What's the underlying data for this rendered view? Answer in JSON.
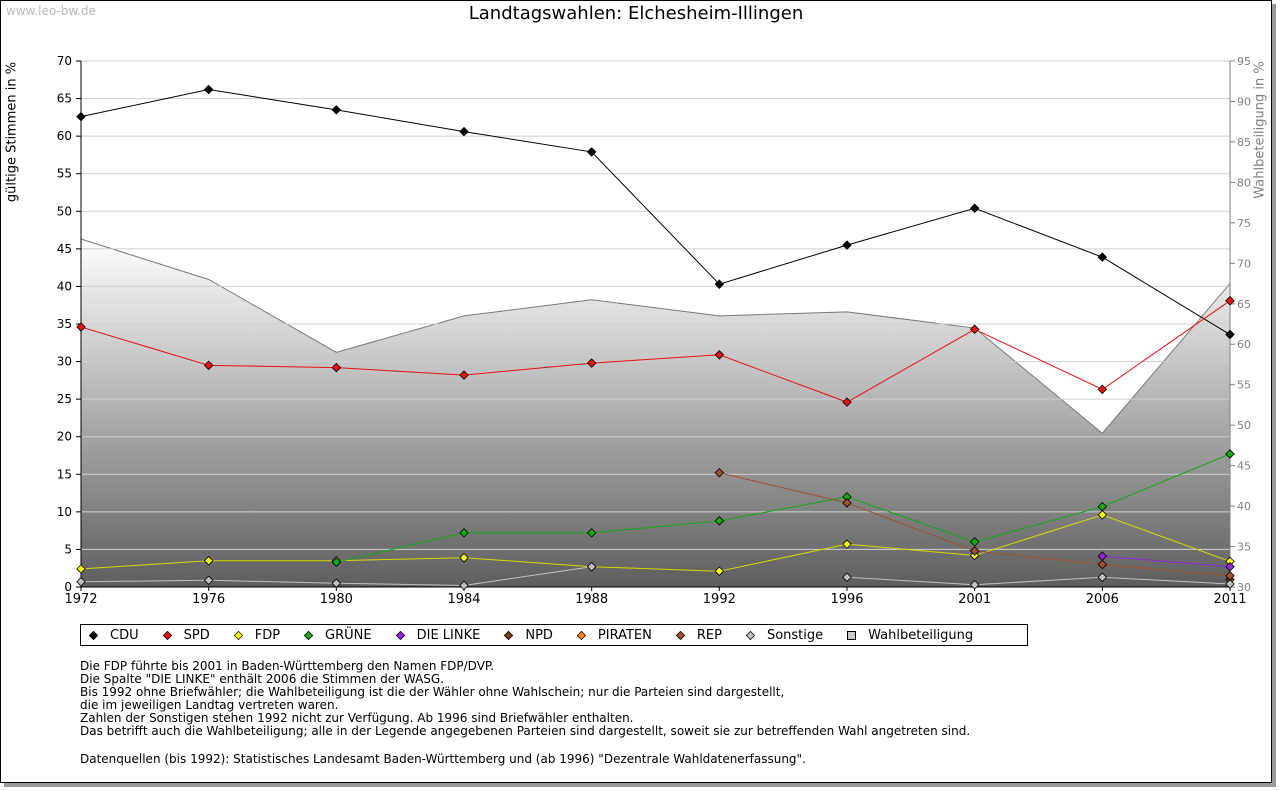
{
  "watermark": "www.leo-bw.de",
  "chart_data": {
    "type": "line",
    "title": "Landtagswahlen: Elchesheim-Illingen",
    "ylabel": "gültige Stimmen in %",
    "ylabel_right": "Wahlbeteiligung in %",
    "x": [
      "1972",
      "1976",
      "1980",
      "1984",
      "1988",
      "1992",
      "1996",
      "2001",
      "2006",
      "2011"
    ],
    "ylim": [
      0,
      70
    ],
    "yticks": [
      0,
      5,
      10,
      15,
      20,
      25,
      30,
      35,
      40,
      45,
      50,
      55,
      60,
      65,
      70
    ],
    "ylim_right": [
      30,
      95
    ],
    "yticks_right": [
      30,
      35,
      40,
      45,
      50,
      55,
      60,
      65,
      70,
      75,
      80,
      85,
      90,
      95
    ],
    "grid": true,
    "legend_position": "bottom",
    "series": [
      {
        "name": "CDU",
        "color": "#000000",
        "values": [
          62.6,
          66.2,
          63.5,
          60.6,
          57.9,
          40.3,
          45.5,
          50.4,
          43.9,
          33.6
        ]
      },
      {
        "name": "SPD",
        "color": "#ee1111",
        "values": [
          34.6,
          29.5,
          29.2,
          28.2,
          29.8,
          30.9,
          24.6,
          34.3,
          26.3,
          38.1
        ]
      },
      {
        "name": "FDP",
        "color": "#ffff00",
        "values": [
          2.4,
          3.5,
          3.5,
          3.9,
          2.7,
          2.1,
          5.7,
          4.2,
          9.6,
          3.4
        ]
      },
      {
        "name": "GRÜNE",
        "color": "#11aa11",
        "values": [
          null,
          null,
          3.3,
          7.2,
          7.2,
          8.8,
          12.0,
          6.0,
          10.7,
          17.7
        ]
      },
      {
        "name": "DIE LINKE",
        "color": "#9922dd",
        "values": [
          null,
          null,
          null,
          null,
          null,
          null,
          null,
          null,
          4.1,
          2.7
        ]
      },
      {
        "name": "NPD",
        "color": "#7a3b12",
        "values": [
          null,
          null,
          null,
          null,
          null,
          null,
          null,
          null,
          null,
          1.0
        ]
      },
      {
        "name": "PIRATEN",
        "color": "#ff8811",
        "values": [
          null,
          null,
          null,
          null,
          null,
          null,
          null,
          null,
          null,
          null
        ]
      },
      {
        "name": "REP",
        "color": "#a0522d",
        "values": [
          null,
          null,
          null,
          null,
          null,
          15.2,
          11.2,
          4.8,
          3.0,
          1.5
        ]
      },
      {
        "name": "Sonstige",
        "color": "#c0c0c0",
        "values": [
          0.7,
          0.9,
          0.5,
          0.2,
          2.7,
          null,
          1.3,
          0.3,
          1.3,
          0.4
        ]
      }
    ],
    "turnout": {
      "name": "Wahlbeteiligung",
      "color": "#c8c8c8",
      "values": [
        73.0,
        68.0,
        59.0,
        63.5,
        65.5,
        63.5,
        64.0,
        62.0,
        49.0,
        67.5
      ]
    }
  },
  "notes": [
    "Die FDP führte bis 2001 in Baden-Württemberg den Namen FDP/DVP.",
    "Die Spalte \"DIE LINKE\" enthält 2006 die Stimmen der WASG.",
    "Bis 1992 ohne Briefwähler; die Wahlbeteiligung ist die der Wähler ohne Wahlschein; nur die Parteien sind dargestellt,",
    "die im jeweiligen Landtag vertreten waren.",
    "Zahlen der Sonstigen stehen 1992 nicht zur Verfügung. Ab 1996 sind Briefwähler enthalten.",
    "Das betrifft auch die Wahlbeteiligung; alle in der Legende angegebenen Parteien sind dargestellt, soweit sie zur betreffenden Wahl angetreten sind."
  ],
  "source": "Datenquellen (bis 1992): Statistisches Landesamt Baden-Württemberg und (ab 1996) \"Dezentrale Wahldatenerfassung\"."
}
